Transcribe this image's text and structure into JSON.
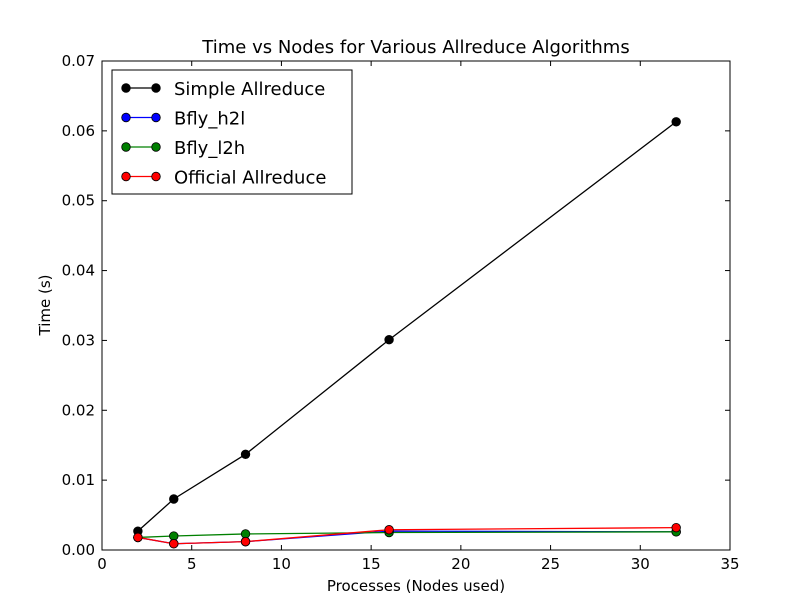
{
  "chart_data": {
    "type": "line",
    "title": "Time vs Nodes for Various Allreduce Algorithms",
    "xlabel": "Processes (Nodes used)",
    "ylabel": "Time (s)",
    "xlim": [
      0,
      35
    ],
    "ylim": [
      0,
      0.07
    ],
    "xticks": [
      0,
      5,
      10,
      15,
      20,
      25,
      30,
      35
    ],
    "xtick_labels": [
      "0",
      "5",
      "10",
      "15",
      "20",
      "25",
      "30",
      "35"
    ],
    "yticks": [
      0,
      0.01,
      0.02,
      0.03,
      0.04,
      0.05,
      0.06,
      0.07
    ],
    "ytick_labels": [
      "0.00",
      "0.01",
      "0.02",
      "0.03",
      "0.04",
      "0.05",
      "0.06",
      "0.07"
    ],
    "grid": false,
    "legend_position": "top-left",
    "x": [
      2,
      4,
      8,
      16,
      32
    ],
    "series": [
      {
        "name": "Simple Allreduce",
        "color": "#000000",
        "values": [
          0.0027,
          0.0073,
          0.0137,
          0.0301,
          0.0613
        ]
      },
      {
        "name": "Bfly_h2l",
        "color": "#0000ff",
        "values": [
          0.0018,
          0.0009,
          0.0012,
          0.0027,
          0.0026
        ]
      },
      {
        "name": "Bfly_l2h",
        "color": "#008000",
        "values": [
          0.0018,
          0.002,
          0.0023,
          0.0025,
          0.0026
        ]
      },
      {
        "name": "Official Allreduce",
        "color": "#ff0000",
        "values": [
          0.0018,
          0.0009,
          0.0012,
          0.0029,
          0.0032
        ]
      }
    ]
  }
}
